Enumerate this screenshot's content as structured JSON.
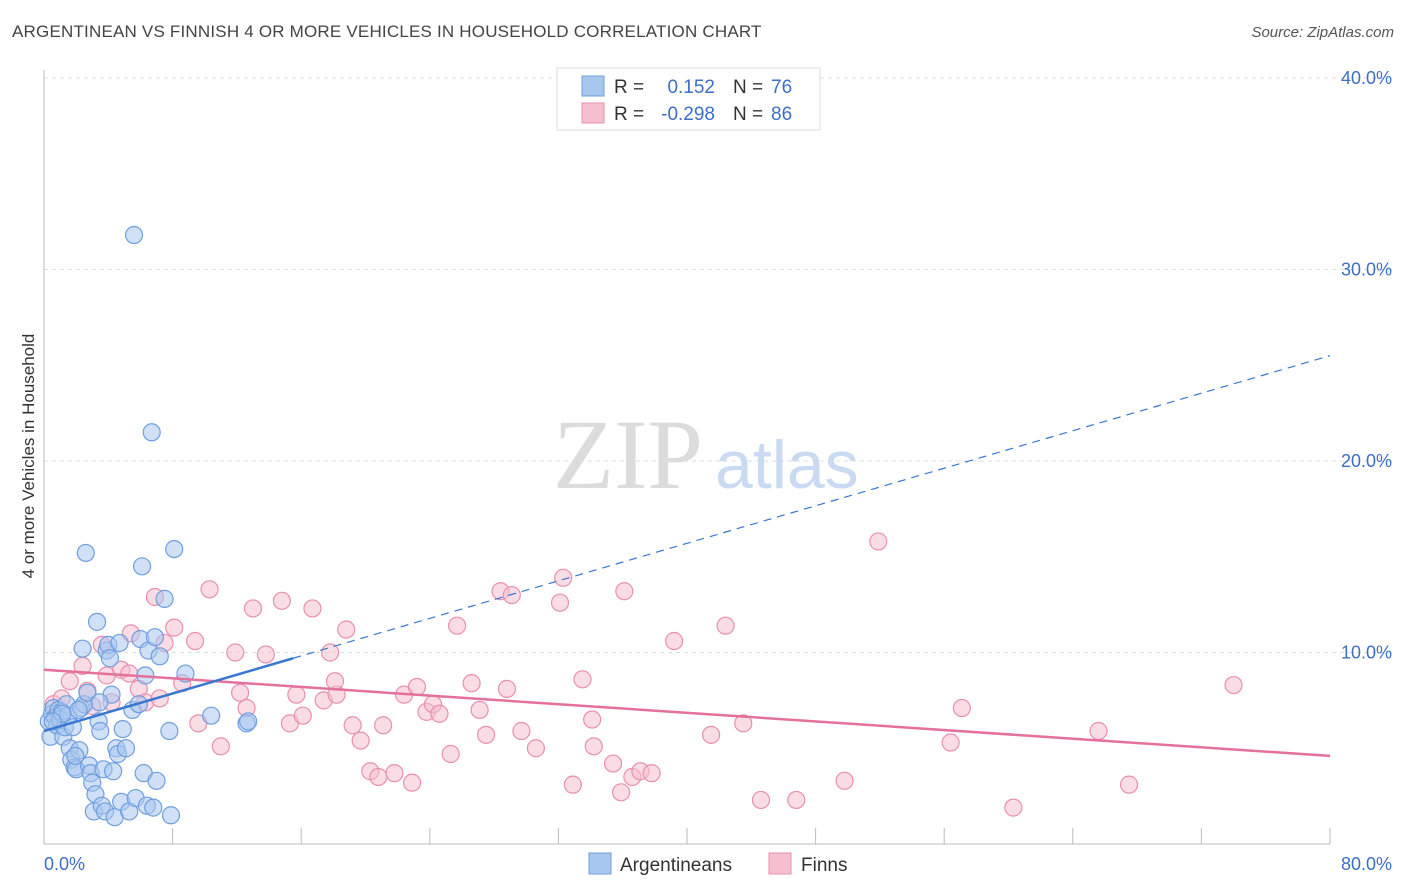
{
  "title": "ARGENTINEAN VS FINNISH 4 OR MORE VEHICLES IN HOUSEHOLD CORRELATION CHART",
  "source": "Source: ZipAtlas.com",
  "watermark": {
    "zip": "ZIP",
    "atlas": "atlas"
  },
  "legend": {
    "r_label": "R =",
    "n_label": "N =",
    "series": [
      {
        "name": "Argentineans",
        "r": "0.152",
        "n": "76"
      },
      {
        "name": "Finns",
        "r": "-0.298",
        "n": "86"
      }
    ]
  },
  "colors": {
    "blue_fill": "#a9c7ee",
    "blue_stroke": "#6f9fdf",
    "blue_line": "#3a78d0",
    "pink_fill": "#f6bfd0",
    "pink_stroke": "#e98fae",
    "pink_line": "#e4719b",
    "grid": "#dddddd",
    "tick_text": "#3d6fc4"
  },
  "chart_data": {
    "type": "scatter",
    "title": "ARGENTINEAN VS FINNISH 4 OR MORE VEHICLES IN HOUSEHOLD CORRELATION CHART",
    "xlabel": "",
    "ylabel": "4 or more Vehicles in Household",
    "xlim": [
      0,
      80
    ],
    "ylim": [
      0,
      40
    ],
    "x_tick_labels": {
      "min": "0.0%",
      "max": "80.0%"
    },
    "y_ticks": [
      10,
      20,
      30,
      40
    ],
    "y_tick_labels": [
      "10.0%",
      "20.0%",
      "30.0%",
      "40.0%"
    ],
    "series": [
      {
        "name": "Argentineans",
        "r": 0.152,
        "n": 76,
        "trend": {
          "x0": 0,
          "y0": 5.9,
          "x1": 15.5,
          "y1": 9.7,
          "dash_to_x": 80,
          "dash_to_y": 25.5
        },
        "points": [
          [
            0.3,
            6.4
          ],
          [
            0.4,
            5.6
          ],
          [
            0.5,
            6.8
          ],
          [
            0.6,
            7.1
          ],
          [
            0.7,
            6.6
          ],
          [
            0.8,
            6.2
          ],
          [
            0.9,
            7.0
          ],
          [
            1.0,
            6.5
          ],
          [
            1.1,
            6.9
          ],
          [
            1.2,
            5.6
          ],
          [
            1.3,
            6.1
          ],
          [
            1.4,
            7.3
          ],
          [
            1.5,
            6.7
          ],
          [
            1.6,
            5.0
          ],
          [
            1.7,
            4.4
          ],
          [
            1.8,
            6.1
          ],
          [
            1.9,
            4.0
          ],
          [
            2.0,
            3.9
          ],
          [
            2.2,
            4.9
          ],
          [
            2.3,
            7.1
          ],
          [
            2.4,
            10.2
          ],
          [
            2.5,
            7.3
          ],
          [
            2.6,
            15.2
          ],
          [
            2.7,
            7.9
          ],
          [
            2.8,
            4.1
          ],
          [
            2.9,
            3.7
          ],
          [
            3.0,
            3.2
          ],
          [
            3.1,
            1.7
          ],
          [
            3.2,
            2.6
          ],
          [
            3.3,
            11.6
          ],
          [
            3.4,
            6.4
          ],
          [
            3.5,
            5.9
          ],
          [
            3.6,
            2.0
          ],
          [
            3.7,
            3.9
          ],
          [
            3.8,
            1.7
          ],
          [
            3.9,
            10.1
          ],
          [
            4.0,
            10.4
          ],
          [
            4.1,
            9.7
          ],
          [
            4.2,
            7.8
          ],
          [
            4.3,
            3.8
          ],
          [
            4.4,
            1.4
          ],
          [
            4.5,
            5.0
          ],
          [
            4.6,
            4.7
          ],
          [
            4.7,
            10.5
          ],
          [
            4.8,
            2.2
          ],
          [
            4.9,
            6.0
          ],
          [
            5.1,
            5.0
          ],
          [
            5.3,
            1.7
          ],
          [
            5.5,
            7.0
          ],
          [
            5.6,
            31.8
          ],
          [
            5.7,
            2.4
          ],
          [
            5.9,
            7.3
          ],
          [
            6.0,
            10.7
          ],
          [
            6.1,
            14.5
          ],
          [
            6.2,
            3.7
          ],
          [
            6.3,
            8.8
          ],
          [
            6.4,
            2.0
          ],
          [
            6.5,
            10.1
          ],
          [
            6.7,
            21.5
          ],
          [
            6.8,
            1.9
          ],
          [
            6.9,
            10.8
          ],
          [
            7.0,
            3.3
          ],
          [
            7.2,
            9.8
          ],
          [
            7.5,
            12.8
          ],
          [
            7.8,
            5.9
          ],
          [
            7.9,
            1.5
          ],
          [
            8.1,
            15.4
          ],
          [
            8.8,
            8.9
          ],
          [
            10.4,
            6.7
          ],
          [
            12.6,
            6.3
          ],
          [
            12.7,
            6.4
          ],
          [
            1.15,
            6.8
          ],
          [
            0.55,
            6.4
          ],
          [
            2.15,
            7.0
          ],
          [
            1.95,
            4.6
          ],
          [
            3.45,
            7.4
          ]
        ]
      },
      {
        "name": "Finns",
        "r": -0.298,
        "n": 86,
        "trend": {
          "x0": 0,
          "y0": 9.1,
          "x1": 80,
          "y1": 4.6
        },
        "points": [
          [
            0.6,
            7.3
          ],
          [
            1.1,
            7.6
          ],
          [
            1.6,
            8.5
          ],
          [
            2.4,
            9.3
          ],
          [
            2.7,
            8.0
          ],
          [
            3.0,
            7.2
          ],
          [
            3.6,
            10.4
          ],
          [
            3.9,
            8.8
          ],
          [
            4.2,
            7.4
          ],
          [
            4.8,
            9.1
          ],
          [
            5.3,
            8.9
          ],
          [
            5.4,
            11.0
          ],
          [
            5.9,
            8.1
          ],
          [
            6.3,
            7.4
          ],
          [
            6.9,
            12.9
          ],
          [
            7.5,
            10.5
          ],
          [
            8.1,
            11.3
          ],
          [
            8.6,
            8.4
          ],
          [
            9.4,
            10.6
          ],
          [
            9.6,
            6.3
          ],
          [
            10.3,
            13.3
          ],
          [
            11.0,
            5.1
          ],
          [
            11.9,
            10.0
          ],
          [
            12.2,
            7.9
          ],
          [
            12.6,
            7.1
          ],
          [
            13.0,
            12.3
          ],
          [
            13.8,
            9.9
          ],
          [
            14.8,
            12.7
          ],
          [
            15.3,
            6.3
          ],
          [
            15.7,
            7.8
          ],
          [
            16.1,
            6.7
          ],
          [
            16.7,
            12.3
          ],
          [
            17.4,
            7.5
          ],
          [
            17.8,
            10.0
          ],
          [
            18.2,
            7.8
          ],
          [
            18.8,
            11.2
          ],
          [
            19.2,
            6.2
          ],
          [
            19.7,
            5.4
          ],
          [
            20.3,
            3.8
          ],
          [
            20.8,
            3.5
          ],
          [
            21.1,
            6.2
          ],
          [
            21.8,
            3.7
          ],
          [
            22.4,
            7.8
          ],
          [
            22.9,
            3.2
          ],
          [
            23.2,
            8.2
          ],
          [
            23.8,
            6.9
          ],
          [
            24.2,
            7.3
          ],
          [
            24.6,
            6.8
          ],
          [
            25.3,
            4.7
          ],
          [
            25.7,
            11.4
          ],
          [
            26.6,
            8.4
          ],
          [
            27.1,
            7.0
          ],
          [
            27.5,
            5.7
          ],
          [
            28.4,
            13.2
          ],
          [
            28.8,
            8.1
          ],
          [
            29.1,
            13.0
          ],
          [
            29.7,
            5.9
          ],
          [
            30.6,
            5.0
          ],
          [
            32.1,
            12.6
          ],
          [
            32.3,
            13.9
          ],
          [
            32.9,
            3.1
          ],
          [
            33.5,
            8.6
          ],
          [
            34.1,
            6.5
          ],
          [
            34.2,
            5.1
          ],
          [
            35.4,
            4.2
          ],
          [
            35.9,
            2.7
          ],
          [
            36.1,
            13.2
          ],
          [
            36.6,
            3.5
          ],
          [
            37.1,
            3.8
          ],
          [
            37.8,
            3.7
          ],
          [
            39.2,
            10.6
          ],
          [
            41.5,
            5.7
          ],
          [
            42.4,
            11.4
          ],
          [
            43.5,
            6.3
          ],
          [
            44.6,
            2.3
          ],
          [
            46.8,
            2.3
          ],
          [
            49.8,
            3.3
          ],
          [
            51.9,
            15.8
          ],
          [
            56.4,
            5.3
          ],
          [
            57.1,
            7.1
          ],
          [
            60.3,
            1.9
          ],
          [
            65.6,
            5.9
          ],
          [
            67.5,
            3.1
          ],
          [
            74.0,
            8.3
          ],
          [
            7.2,
            7.6
          ],
          [
            18.1,
            8.5
          ]
        ]
      }
    ]
  }
}
